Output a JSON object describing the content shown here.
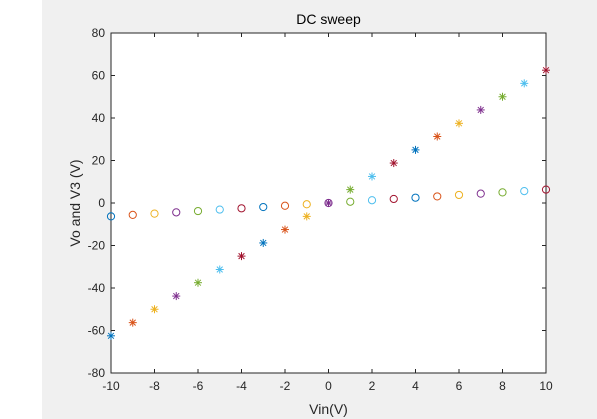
{
  "chart_data": {
    "type": "scatter",
    "title": "DC sweep",
    "xlabel": "Vin(V)",
    "ylabel": "Vo and V3 (V)",
    "xlim": [
      -10,
      10
    ],
    "ylim": [
      -80,
      80
    ],
    "xticks": [
      "-10",
      "-8",
      "-6",
      "-4",
      "-2",
      "0",
      "2",
      "4",
      "6",
      "8",
      "10"
    ],
    "yticks": [
      "-80",
      "-60",
      "-40",
      "-20",
      "0",
      "20",
      "40",
      "60",
      "80"
    ],
    "grid": false,
    "series": [
      {
        "marker": "asterisk",
        "x": [
          -10,
          -9,
          -8,
          -7,
          -6,
          -5,
          -4,
          -3,
          -2,
          -1,
          0,
          1,
          2,
          3,
          4,
          5,
          6,
          7,
          8,
          9,
          10
        ],
        "y": [
          -62.5,
          -56.3,
          -50,
          -43.8,
          -37.5,
          -31.3,
          -25,
          -18.8,
          -12.5,
          -6.3,
          0,
          6.3,
          12.5,
          18.8,
          25,
          31.3,
          37.5,
          43.8,
          50,
          56.3,
          62.5
        ]
      },
      {
        "marker": "circle",
        "x": [
          -10,
          -9,
          -8,
          -7,
          -6,
          -5,
          -4,
          -3,
          -2,
          -1,
          0,
          1,
          2,
          3,
          4,
          5,
          6,
          7,
          8,
          9,
          10
        ],
        "y": [
          -6.3,
          -5.6,
          -5,
          -4.4,
          -3.8,
          -3.1,
          -2.5,
          -1.9,
          -1.3,
          -0.6,
          0,
          0.6,
          1.3,
          1.9,
          2.5,
          3.1,
          3.8,
          4.4,
          5,
          5.6,
          6.3
        ]
      }
    ],
    "point_colors": [
      "#0072bd",
      "#d95319",
      "#edb120",
      "#7e2f8e",
      "#77ac30",
      "#4dbeee",
      "#a2142f"
    ]
  }
}
